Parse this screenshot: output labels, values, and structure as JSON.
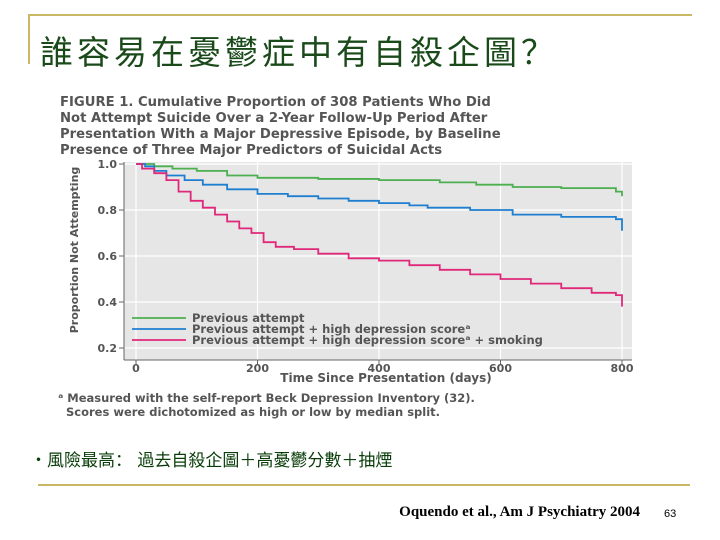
{
  "slide": {
    "title": "誰容易在憂鬱症中有自殺企圖？",
    "bullet": "‧風險最高： 過去自殺企圖＋高憂鬱分數＋抽煙",
    "citation": "Oquendo et al., Am J Psychiatry 2004",
    "page_number": "63"
  },
  "figure": {
    "caption_lines": [
      "FIGURE 1. Cumulative Proportion of 308 Patients Who Did",
      "Not Attempt Suicide Over a 2-Year Follow-Up Period After",
      "Presentation With a Major Depressive Episode, by Baseline",
      "Presence of Three Major Predictors of Suicidal Acts"
    ],
    "footnote_lines": [
      "ᵃ Measured with the self-report Beck Depression Inventory (32).",
      "Scores were dichotomized as high or low by median split."
    ]
  },
  "chart_data": {
    "type": "line",
    "xlabel": "Time Since Presentation (days)",
    "ylabel": "Proportion Not Attempting",
    "xlim": [
      0,
      800
    ],
    "ylim": [
      0.2,
      1.0
    ],
    "x_ticks": [
      0,
      200,
      400,
      600,
      800
    ],
    "y_ticks": [
      0.2,
      0.4,
      0.6,
      0.8,
      1.0
    ],
    "x_tick_labels": [
      "0",
      "200",
      "400",
      "600",
      "800"
    ],
    "y_tick_labels": [
      "0.2",
      "0.4",
      "0.6",
      "0.8",
      "1.0"
    ],
    "grid": true,
    "legend_placement": "bottom-left",
    "series": [
      {
        "name": "Previous attempt",
        "color": "#4caf50",
        "points": [
          [
            0,
            1.0
          ],
          [
            30,
            0.99
          ],
          [
            60,
            0.98
          ],
          [
            100,
            0.97
          ],
          [
            150,
            0.95
          ],
          [
            200,
            0.94
          ],
          [
            300,
            0.935
          ],
          [
            400,
            0.93
          ],
          [
            500,
            0.92
          ],
          [
            560,
            0.91
          ],
          [
            620,
            0.9
          ],
          [
            700,
            0.895
          ],
          [
            790,
            0.88
          ],
          [
            800,
            0.86
          ]
        ]
      },
      {
        "name": "Previous attempt + high depression scoreᵃ",
        "color": "#1e7fd0",
        "points": [
          [
            0,
            1.0
          ],
          [
            15,
            0.99
          ],
          [
            30,
            0.97
          ],
          [
            50,
            0.95
          ],
          [
            80,
            0.93
          ],
          [
            110,
            0.91
          ],
          [
            150,
            0.89
          ],
          [
            200,
            0.87
          ],
          [
            250,
            0.86
          ],
          [
            300,
            0.85
          ],
          [
            350,
            0.84
          ],
          [
            400,
            0.83
          ],
          [
            450,
            0.82
          ],
          [
            480,
            0.81
          ],
          [
            550,
            0.8
          ],
          [
            620,
            0.78
          ],
          [
            700,
            0.77
          ],
          [
            790,
            0.76
          ],
          [
            800,
            0.71
          ]
        ]
      },
      {
        "name": "Previous attempt + high depression scoreᵃ + smoking",
        "color": "#e0287a",
        "points": [
          [
            0,
            1.0
          ],
          [
            10,
            0.98
          ],
          [
            30,
            0.96
          ],
          [
            50,
            0.93
          ],
          [
            70,
            0.88
          ],
          [
            90,
            0.84
          ],
          [
            110,
            0.81
          ],
          [
            130,
            0.78
          ],
          [
            150,
            0.75
          ],
          [
            170,
            0.72
          ],
          [
            190,
            0.7
          ],
          [
            210,
            0.66
          ],
          [
            230,
            0.64
          ],
          [
            260,
            0.63
          ],
          [
            300,
            0.61
          ],
          [
            350,
            0.59
          ],
          [
            400,
            0.58
          ],
          [
            450,
            0.56
          ],
          [
            500,
            0.54
          ],
          [
            550,
            0.52
          ],
          [
            600,
            0.5
          ],
          [
            650,
            0.48
          ],
          [
            700,
            0.46
          ],
          [
            750,
            0.44
          ],
          [
            790,
            0.43
          ],
          [
            800,
            0.38
          ]
        ]
      }
    ]
  }
}
